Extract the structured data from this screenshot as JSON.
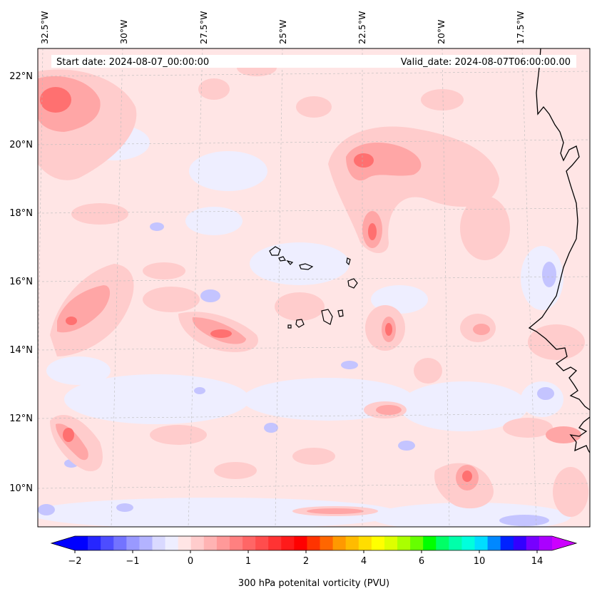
{
  "header": {
    "start_date": "Start date: 2024-08-07_00:00:00",
    "valid_date": "Valid_date: 2024-08-07T06:00:00.00"
  },
  "axes": {
    "lon_labels": [
      "32.5°W",
      "30°W",
      "27.5°W",
      "25°W",
      "22.5°W",
      "20°W",
      "17.5°W"
    ],
    "lat_labels": [
      "22°N",
      "20°N",
      "18°N",
      "16°N",
      "14°N",
      "12°N",
      "10°N"
    ]
  },
  "colorbar": {
    "tick_labels": [
      "−2",
      "−1",
      "0",
      "1",
      "2",
      "4",
      "6",
      "10",
      "14"
    ],
    "label": "300 hPa potenital vorticity (PVU)",
    "colors": [
      "#0000ff",
      "#2626ff",
      "#4d4dff",
      "#7373ff",
      "#9999ff",
      "#b3b3ff",
      "#d9d9ff",
      "#eeeeff",
      "#ffe5e5",
      "#ffcccc",
      "#ffb3b3",
      "#ff9999",
      "#ff8080",
      "#ff6666",
      "#ff4d4d",
      "#ff3333",
      "#ff1a1a",
      "#ff0000",
      "#ff3300",
      "#ff6600",
      "#ff9900",
      "#ffbb00",
      "#ffdd00",
      "#ffff00",
      "#ddff00",
      "#aaff00",
      "#66ff00",
      "#00ff00",
      "#00ff66",
      "#00ffaa",
      "#00ffdd",
      "#00ddff",
      "#0088ff",
      "#0022ff",
      "#3300ff",
      "#7700ff",
      "#aa00ff"
    ],
    "under_color": "#0000ff",
    "over_color": "#cc00ff"
  },
  "field": {
    "background_color": "#ffe5e5",
    "negative_color": "#eeeeff",
    "strong_negative_color": "#b3b3ff",
    "light_positive_color": "#ffcccc",
    "medium_positive_color": "#ffa0a0",
    "strong_positive_color": "#ff7070",
    "coastline_color": "#000000"
  }
}
